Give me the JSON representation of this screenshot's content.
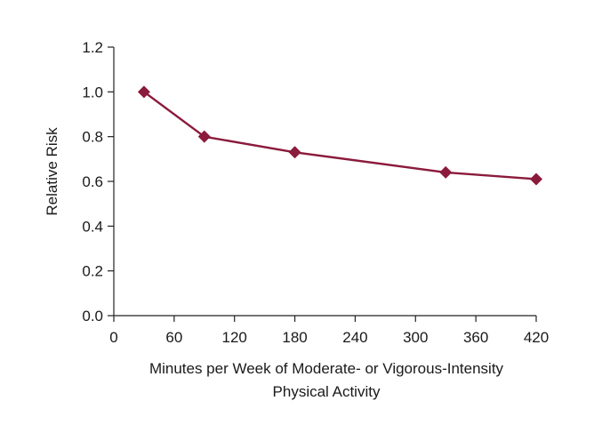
{
  "chart_data": {
    "type": "line",
    "title": "",
    "xlabel_lines": [
      "Minutes per Week of Moderate- or Vigorous-Intensity",
      "Physical Activity"
    ],
    "ylabel": "Relative Risk",
    "xlim": [
      0,
      420
    ],
    "ylim": [
      0,
      1.2
    ],
    "x_ticks": [
      0,
      60,
      120,
      180,
      240,
      300,
      360,
      420
    ],
    "y_ticks": [
      0.0,
      0.2,
      0.4,
      0.6,
      0.8,
      1.0,
      1.2
    ],
    "y_tick_labels": [
      "0.0",
      "0.2",
      "0.4",
      "0.6",
      "0.8",
      "1.0",
      "1.2"
    ],
    "grid": false,
    "series": [
      {
        "name": "Relative Risk",
        "color": "#8b1a3c",
        "marker": "diamond",
        "x": [
          30,
          90,
          180,
          330,
          420
        ],
        "y": [
          1.0,
          0.8,
          0.73,
          0.64,
          0.61
        ]
      }
    ]
  }
}
